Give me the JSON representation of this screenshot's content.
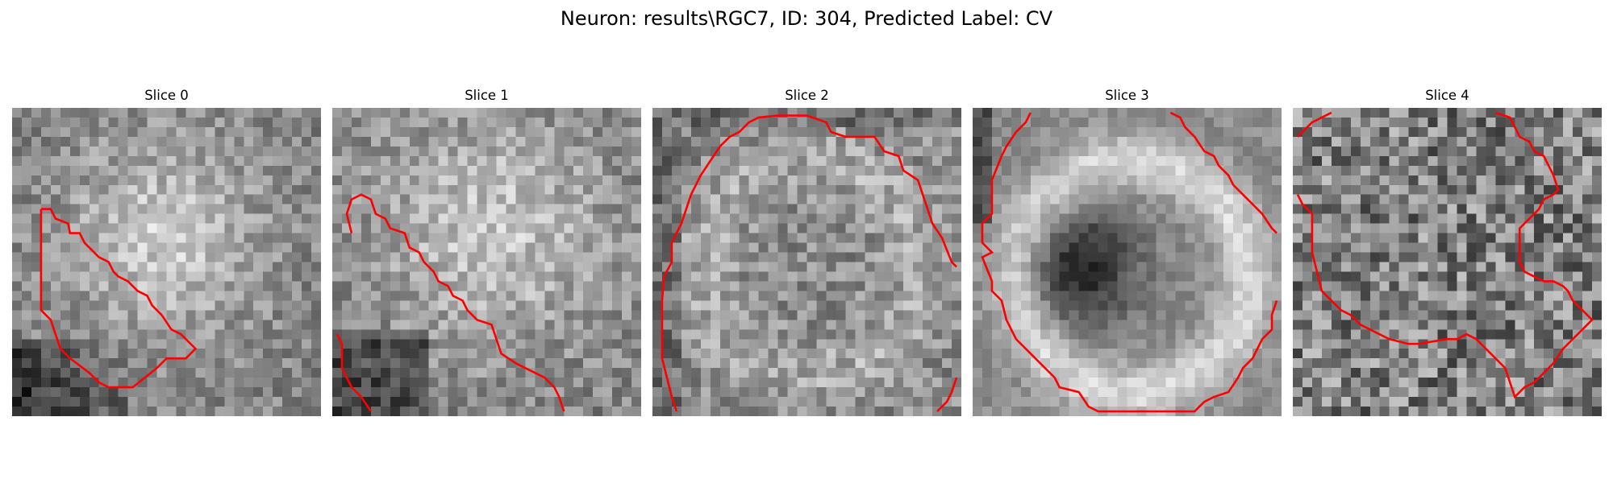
{
  "figure": {
    "title": "Neuron: results\\RGC7, ID: 304, Predicted Label: CV"
  },
  "colors": {
    "contour": "#ff0000",
    "colormap": "gray"
  },
  "panels": [
    {
      "label": "Slice 0",
      "pattern": "bright-blob-center",
      "contour": "diagonal-lower-left"
    },
    {
      "label": "Slice 1",
      "pattern": "bright-blob-center",
      "contour": "diagonal-band"
    },
    {
      "label": "Slice 2",
      "pattern": "noisy-ring",
      "contour": "large-circle"
    },
    {
      "label": "Slice 3",
      "pattern": "dark-center-bright-ring",
      "contour": "large-circle"
    },
    {
      "label": "Slice 4",
      "pattern": "noise",
      "contour": "irregular-loop"
    }
  ]
}
